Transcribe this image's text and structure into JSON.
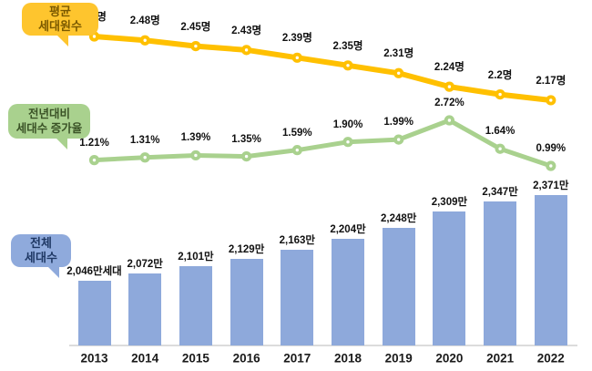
{
  "chart_data": {
    "type": "combo",
    "categories": [
      "2013",
      "2014",
      "2015",
      "2016",
      "2017",
      "2018",
      "2019",
      "2020",
      "2021",
      "2022"
    ],
    "series": [
      {
        "name": "평균 세대원수",
        "type": "line",
        "unit": "명",
        "color": "#ffc000",
        "values": [
          2.5,
          2.48,
          2.45,
          2.43,
          2.39,
          2.35,
          2.31,
          2.24,
          2.2,
          2.17
        ],
        "labels": [
          "2.5명",
          "2.48명",
          "2.45명",
          "2.43명",
          "2.39명",
          "2.35명",
          "2.31명",
          "2.24명",
          "2.2명",
          "2.17명"
        ]
      },
      {
        "name": "전년대비 세대수 증가율",
        "type": "line",
        "unit": "%",
        "color": "#a9d18e",
        "values": [
          1.21,
          1.31,
          1.39,
          1.35,
          1.59,
          1.9,
          1.99,
          2.72,
          1.64,
          0.99
        ],
        "labels": [
          "1.21%",
          "1.31%",
          "1.39%",
          "1.35%",
          "1.59%",
          "1.90%",
          "1.99%",
          "2.72%",
          "1.64%",
          "0.99%"
        ]
      },
      {
        "name": "전체 세대수",
        "type": "bar",
        "unit": "만",
        "color": "#8ea9db",
        "values": [
          2046,
          2072,
          2101,
          2129,
          2163,
          2204,
          2248,
          2309,
          2347,
          2371
        ],
        "labels": [
          "2,046만세대",
          "2,072만",
          "2,101만",
          "2,129만",
          "2,163만",
          "2,204만",
          "2,248만",
          "2,309만",
          "2,347만",
          "2,371만"
        ]
      }
    ],
    "grid": false,
    "legend_position": "left-callouts",
    "axes_visible": false
  },
  "callouts": {
    "avg_members": {
      "line1": "평균",
      "line2": "세대원수"
    },
    "growth_rate": {
      "line1": "전년대비",
      "line2": "세대수 증가율"
    },
    "total_households": {
      "line1": "전체",
      "line2": "세대수"
    }
  },
  "colors": {
    "line_avg": "#ffc000",
    "line_growth": "#a9d18e",
    "bar_fill": "#8ea9db",
    "axis_line": "#dcdcdc",
    "label_text": "#111111"
  }
}
